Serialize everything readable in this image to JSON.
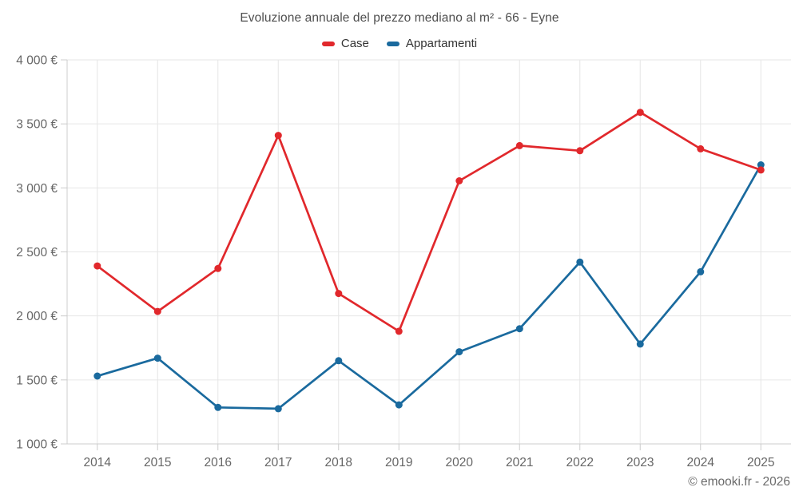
{
  "watermark": "© emooki.fr - 2026",
  "chart_data": {
    "type": "line",
    "title": "Evoluzione annuale del prezzo mediano al m² - 66 - Eyne",
    "categories": [
      "2014",
      "2015",
      "2016",
      "2017",
      "2018",
      "2019",
      "2020",
      "2021",
      "2022",
      "2023",
      "2024",
      "2025"
    ],
    "series": [
      {
        "name": "Case",
        "color": "#e1282c",
        "values": [
          2390,
          2035,
          2370,
          3410,
          2175,
          1880,
          3055,
          3330,
          3290,
          3590,
          3305,
          3140
        ]
      },
      {
        "name": "Appartamenti",
        "color": "#1a6a9e",
        "values": [
          1530,
          1670,
          1285,
          1275,
          1650,
          1305,
          1720,
          1900,
          2420,
          1780,
          2345,
          3180
        ]
      }
    ],
    "ylim": [
      1000,
      4000
    ],
    "ytick_step": 500,
    "ytick_labels": [
      "1 000 €",
      "1 500 €",
      "2 000 €",
      "2 500 €",
      "3 000 €",
      "3 500 €",
      "4 000 €"
    ],
    "xlabel": "",
    "ylabel": "",
    "grid": true,
    "legend_position": "top",
    "currency": "€"
  }
}
